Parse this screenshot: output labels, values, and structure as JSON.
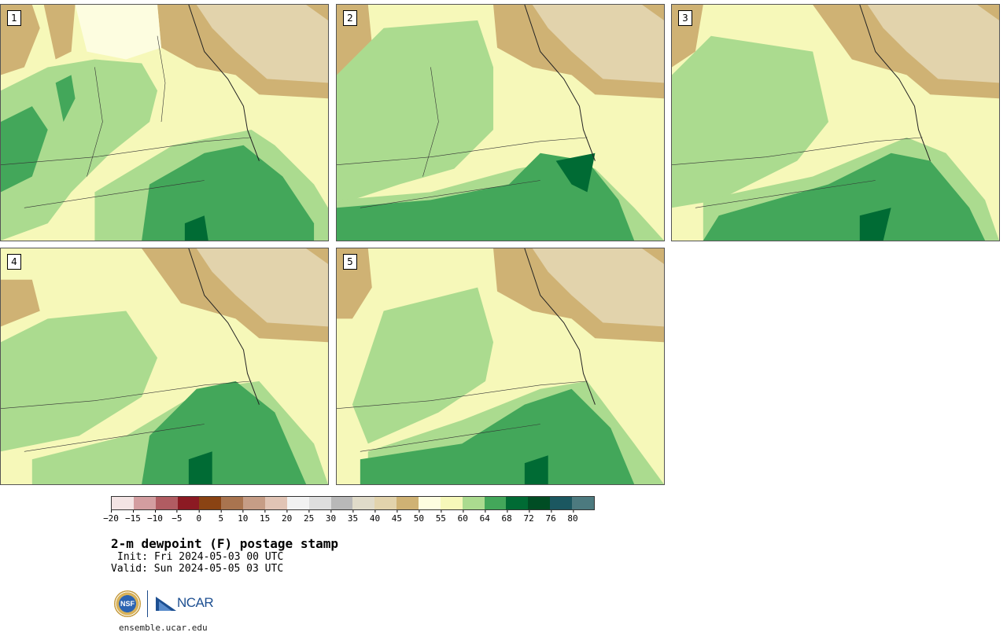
{
  "panels": [
    {
      "label": "1"
    },
    {
      "label": "2"
    },
    {
      "label": "3"
    },
    {
      "label": "4"
    },
    {
      "label": "5"
    }
  ],
  "colorbar": {
    "colors": [
      "#f3e4e4",
      "#d39da0",
      "#b15c62",
      "#8c1a23",
      "#8a4313",
      "#a9744f",
      "#c69d86",
      "#e1c4b5",
      "#f2f2f2",
      "#dedede",
      "#b8b8b8",
      "#e0dbc9",
      "#e2d3ac",
      "#cfb274",
      "#fdfde0",
      "#f6f8b9",
      "#abdb8f",
      "#43a75a",
      "#006b34",
      "#004d24",
      "#1b5760",
      "#4c7a7f"
    ],
    "ticks": [
      "−20",
      "−15",
      "−10",
      "−5",
      "0",
      "5",
      "10",
      "15",
      "20",
      "25",
      "30",
      "35",
      "40",
      "45",
      "50",
      "55",
      "60",
      "64",
      "68",
      "72",
      "76",
      "80"
    ]
  },
  "title": "2-m dewpoint (F) postage stamp",
  "init": "Init: Fri 2024-05-03 00 UTC",
  "valid": "Valid: Sun 2024-05-05 03 UTC",
  "logos": {
    "nsf": "NSF",
    "ncar": "NCAR"
  },
  "footer_url": "ensemble.ucar.edu"
}
